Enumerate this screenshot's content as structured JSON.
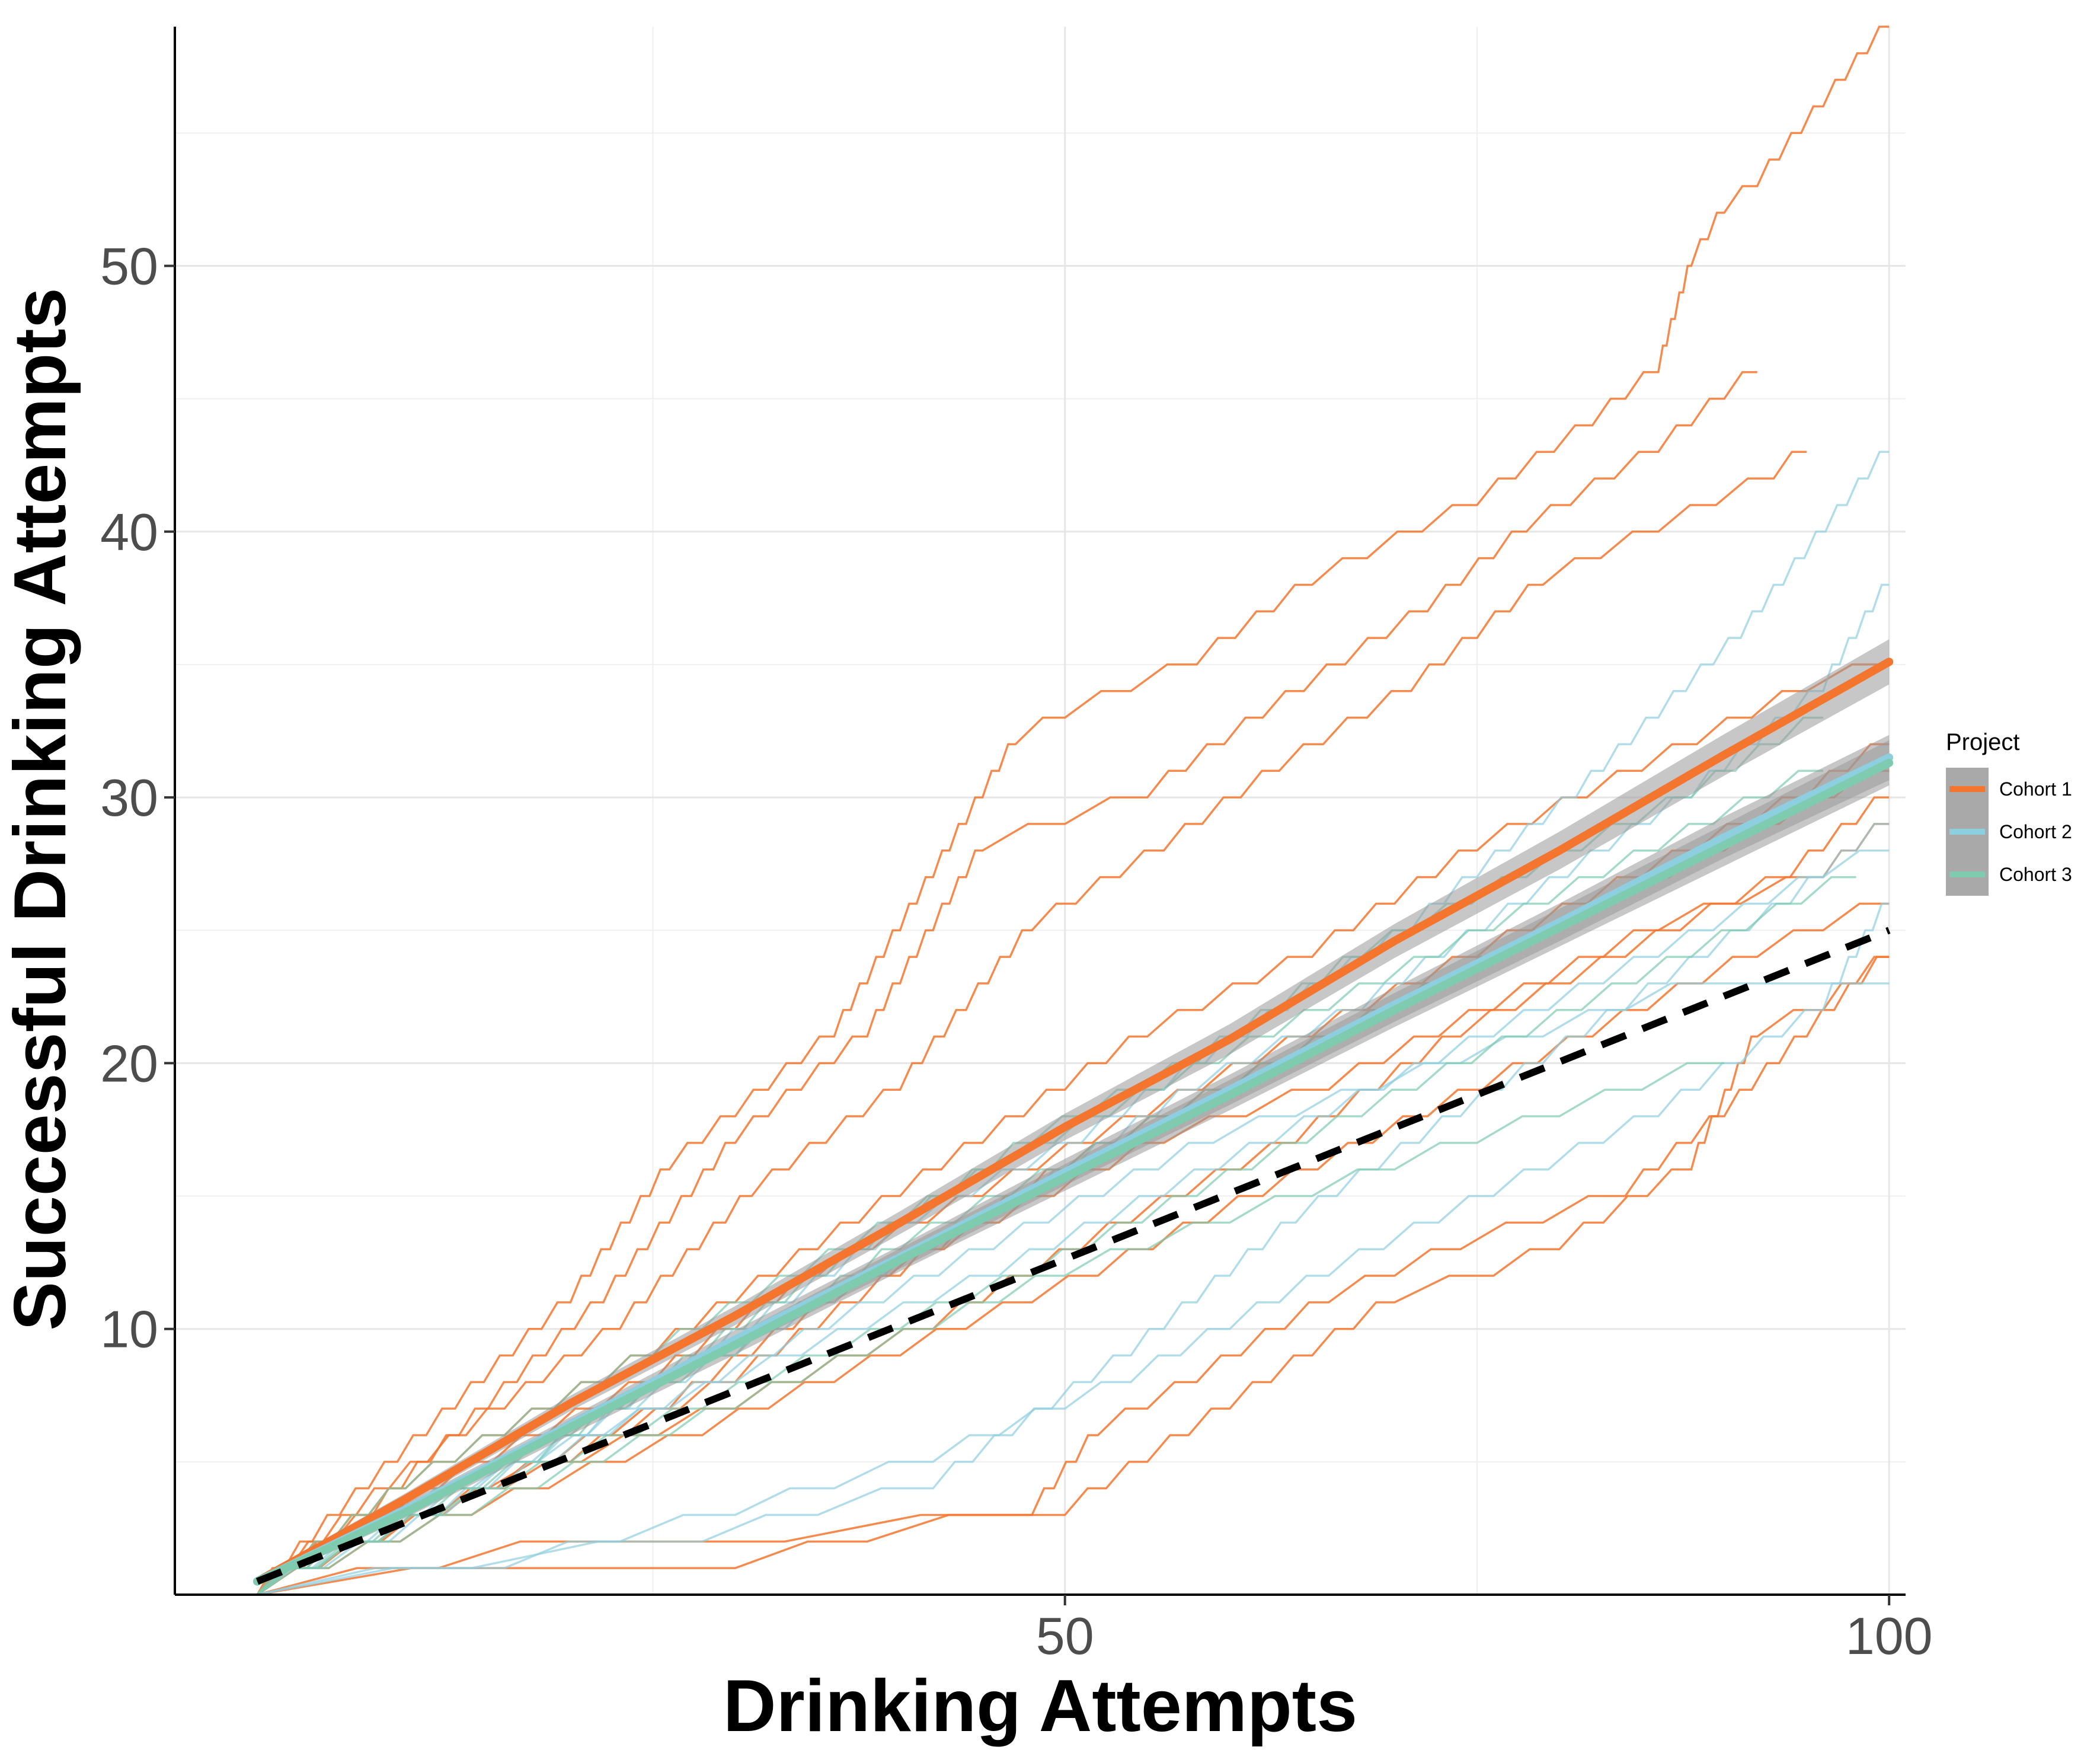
{
  "chart_data": {
    "type": "line",
    "title": "",
    "xlabel": "Drinking Attempts",
    "ylabel": "Successful Drinking Attempts",
    "xlim": [
      -4,
      101
    ],
    "ylim": [
      0,
      59
    ],
    "x_ticks": [
      50,
      100
    ],
    "y_ticks": [
      10,
      20,
      30,
      40,
      50
    ],
    "grid": true,
    "legend": {
      "title": "Project",
      "position": "right",
      "entries": [
        "Cohort 1",
        "Cohort 2",
        "Cohort 3"
      ]
    },
    "colors": {
      "Cohort 1": "#f4752e",
      "Cohort 2": "#8ecfdf",
      "Cohort 3": "#7ecbb0",
      "reference": "#000000",
      "ci_band": "#999999"
    },
    "series": [
      {
        "name": "Cohort 1",
        "kind": "fit",
        "x": [
          1,
          10,
          20,
          30,
          40,
          50,
          60,
          70,
          80,
          90,
          100
        ],
        "y": [
          0.5,
          3.6,
          7.2,
          10.5,
          14.0,
          17.6,
          20.9,
          24.6,
          28.0,
          31.6,
          35.1
        ]
      },
      {
        "name": "Cohort 2",
        "kind": "fit",
        "x": [
          1,
          10,
          20,
          30,
          40,
          50,
          60,
          70,
          80,
          90,
          100
        ],
        "y": [
          0.5,
          3.2,
          6.4,
          9.6,
          12.7,
          15.9,
          19.0,
          22.2,
          25.3,
          28.5,
          31.5
        ]
      },
      {
        "name": "Cohort 3",
        "kind": "fit",
        "x": [
          1,
          10,
          20,
          30,
          40,
          50,
          60,
          70,
          80,
          90,
          100
        ],
        "y": [
          0.5,
          3.1,
          6.3,
          9.4,
          12.6,
          15.7,
          18.8,
          22.0,
          25.1,
          28.2,
          31.3
        ]
      },
      {
        "name": "",
        "kind": "reference",
        "x": [
          1,
          100
        ],
        "y": [
          0.5,
          25
        ]
      },
      {
        "name": "Cohort 1",
        "kind": "individual",
        "x": [
          1,
          6,
          20,
          26,
          36,
          47,
          50,
          58,
          65,
          75,
          82,
          86,
          88,
          90,
          92,
          100
        ],
        "y": [
          0,
          3,
          11,
          16,
          21,
          32,
          33,
          35,
          38,
          41,
          44,
          46,
          50,
          52,
          53,
          59
        ]
      },
      {
        "name": "Cohort 1",
        "kind": "individual",
        "x": [
          1,
          8,
          22,
          30,
          38,
          45,
          55,
          62,
          72,
          78,
          86,
          92
        ],
        "y": [
          0,
          3,
          11,
          17,
          21,
          28,
          30,
          33,
          37,
          40,
          43,
          46
        ]
      },
      {
        "name": "Cohort 1",
        "kind": "individual",
        "x": [
          1,
          9,
          23,
          31,
          40,
          48,
          56,
          63,
          71,
          79,
          86,
          93,
          95
        ],
        "y": [
          0,
          4,
          10,
          15,
          19,
          25,
          28,
          31,
          34,
          38,
          40,
          42,
          43
        ]
      },
      {
        "name": "Cohort 1",
        "kind": "individual",
        "x": [
          1,
          10,
          25,
          35,
          45,
          55,
          65,
          75,
          85,
          95,
          100
        ],
        "y": [
          0,
          4,
          9,
          13,
          17,
          21,
          24,
          28,
          31,
          34,
          35
        ]
      },
      {
        "name": "Cohort 1",
        "kind": "individual",
        "x": [
          1,
          12,
          25,
          35,
          45,
          55,
          65,
          75,
          85,
          95,
          100
        ],
        "y": [
          0,
          4,
          8,
          12,
          15,
          18,
          21,
          24,
          27,
          30,
          32
        ]
      },
      {
        "name": "Cohort 1",
        "kind": "individual",
        "x": [
          1,
          12,
          26,
          36,
          46,
          56,
          66,
          76,
          86,
          96,
          100
        ],
        "y": [
          0,
          3,
          7,
          11,
          14,
          17,
          19,
          22,
          25,
          27,
          29
        ]
      },
      {
        "name": "Cohort 1",
        "kind": "individual",
        "x": [
          1,
          14,
          28,
          40,
          52,
          62,
          72,
          82,
          92,
          100
        ],
        "y": [
          0,
          3,
          6,
          9,
          12,
          15,
          18,
          21,
          24,
          26
        ]
      },
      {
        "name": "Cohort 1",
        "kind": "individual",
        "x": [
          1,
          12,
          21,
          33,
          48,
          52,
          58,
          66,
          74,
          84,
          90,
          100
        ],
        "y": [
          0,
          1,
          2,
          2,
          3,
          6,
          8,
          11,
          13,
          15,
          18,
          24
        ]
      },
      {
        "name": "Cohort 1",
        "kind": "individual",
        "x": [
          1,
          18,
          30,
          38,
          47,
          50,
          60,
          70,
          76,
          80,
          88,
          92,
          96,
          100
        ],
        "y": [
          0,
          1,
          1,
          2,
          3,
          3,
          7,
          11,
          12,
          13,
          16,
          21,
          22,
          24
        ]
      },
      {
        "name": "Cohort 1",
        "kind": "individual",
        "x": [
          1,
          16,
          30,
          42,
          54,
          64,
          74,
          84,
          94,
          100
        ],
        "y": [
          0,
          4,
          7,
          10,
          14,
          17,
          21,
          24,
          27,
          30
        ]
      },
      {
        "name": "Cohort 1",
        "kind": "individual",
        "x": [
          1,
          10,
          20,
          30,
          40,
          50,
          60,
          70,
          80,
          90,
          100
        ],
        "y": [
          0,
          3,
          5,
          8,
          12,
          16,
          19,
          22,
          25,
          28,
          31
        ]
      },
      {
        "name": "Cohort 2",
        "kind": "individual",
        "x": [
          1,
          14,
          28,
          42,
          54,
          64,
          74,
          84,
          94,
          100
        ],
        "y": [
          0,
          1,
          2,
          4,
          9,
          14,
          18,
          22,
          26,
          29
        ]
      },
      {
        "name": "Cohort 2",
        "kind": "individual",
        "x": [
          1,
          10,
          22,
          34,
          46,
          56,
          66,
          76,
          86,
          96,
          100
        ],
        "y": [
          0,
          3,
          6,
          9,
          12,
          15,
          18,
          21,
          24,
          27,
          28
        ]
      },
      {
        "name": "Cohort 2",
        "kind": "individual",
        "x": [
          1,
          12,
          24,
          36,
          48,
          58,
          68,
          78,
          88,
          96,
          100
        ],
        "y": [
          0,
          3,
          7,
          11,
          15,
          19,
          22,
          26,
          30,
          34,
          38
        ]
      },
      {
        "name": "Cohort 2",
        "kind": "individual",
        "x": [
          1,
          9,
          19,
          29,
          39,
          49,
          59,
          69,
          79,
          89,
          100
        ],
        "y": [
          0,
          2,
          5,
          8,
          11,
          14,
          17,
          19,
          21,
          23,
          23
        ]
      },
      {
        "name": "Cohort 2",
        "kind": "individual",
        "x": [
          1,
          16,
          30,
          42,
          54,
          66,
          76,
          86,
          96,
          100
        ],
        "y": [
          0,
          1,
          3,
          5,
          8,
          12,
          15,
          18,
          22,
          26
        ]
      },
      {
        "name": "Cohort 2",
        "kind": "individual",
        "x": [
          1,
          11,
          21,
          31,
          41,
          51,
          61,
          71,
          81,
          91,
          100
        ],
        "y": [
          0,
          3,
          6,
          10,
          14,
          17,
          21,
          25,
          30,
          36,
          43
        ]
      },
      {
        "name": "Cohort 3",
        "kind": "individual",
        "x": [
          1,
          10,
          20,
          30,
          40,
          50,
          60,
          70,
          80,
          90
        ],
        "y": [
          0,
          3,
          6,
          9,
          13,
          16,
          19,
          22,
          25,
          28
        ]
      },
      {
        "name": "Cohort 3",
        "kind": "individual",
        "x": [
          1,
          12,
          24,
          36,
          48,
          58,
          68,
          78,
          88,
          98
        ],
        "y": [
          0,
          3,
          6,
          9,
          12,
          15,
          18,
          21,
          24,
          27
        ]
      },
      {
        "name": "Cohort 3",
        "kind": "individual",
        "x": [
          1,
          8,
          18,
          28,
          38,
          48,
          58,
          68,
          78,
          88,
          96
        ],
        "y": [
          0,
          2,
          5,
          9,
          13,
          17,
          20,
          24,
          27,
          30,
          33
        ]
      },
      {
        "name": "Cohort 3",
        "kind": "individual",
        "x": [
          1,
          14,
          26,
          38,
          50,
          60,
          70,
          80,
          90
        ],
        "y": [
          0,
          3,
          6,
          9,
          12,
          14,
          16,
          18,
          20
        ]
      },
      {
        "name": "Cohort 3",
        "kind": "individual",
        "x": [
          1,
          10,
          22,
          34,
          46,
          56,
          66,
          76,
          86,
          96
        ],
        "y": [
          0,
          4,
          8,
          12,
          16,
          19,
          22,
          25,
          28,
          31
        ]
      }
    ]
  }
}
